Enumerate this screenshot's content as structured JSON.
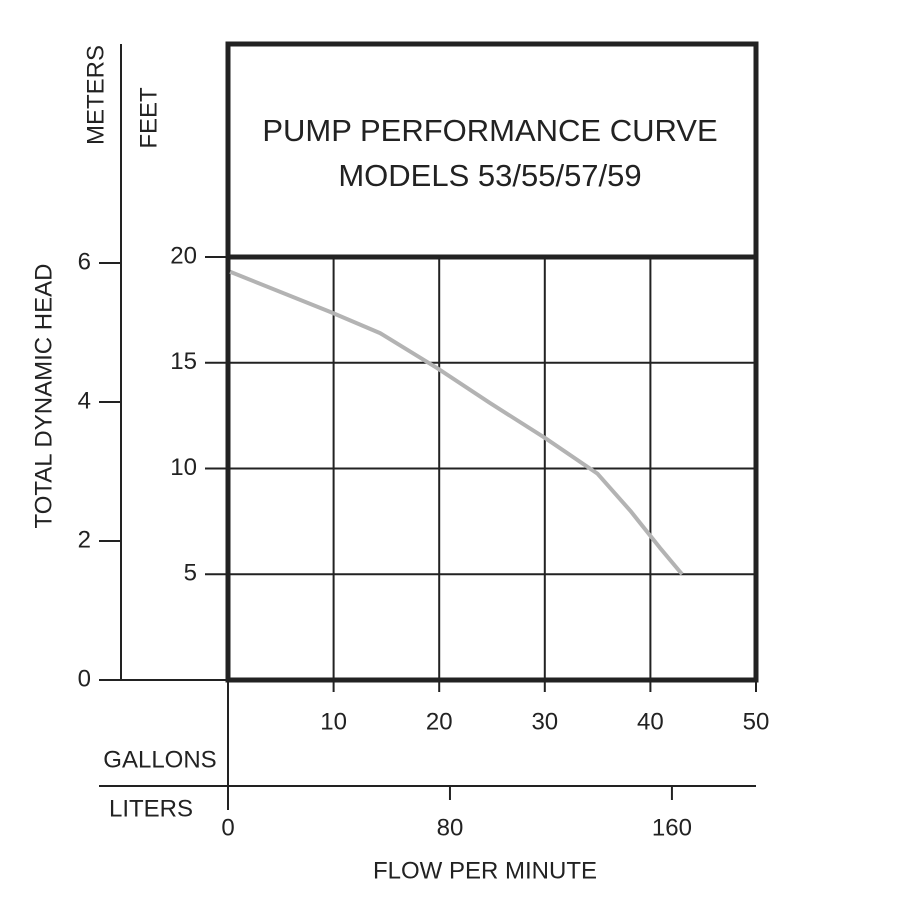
{
  "chart_data": {
    "type": "line",
    "title": "PUMP PERFORMANCE CURVE",
    "subtitle": "MODELS 53/55/57/59",
    "y_label": "FEET",
    "y2_label": "METERS",
    "y_axis_title": "TOTAL DYNAMIC HEAD",
    "x_label": "GALLONS",
    "x2_label": "LITERS",
    "x_axis_title": "FLOW PER MINUTE",
    "xlim": [
      0,
      50
    ],
    "xticks": [
      10,
      20,
      30,
      40,
      50
    ],
    "x2lim": [
      0,
      190.3
    ],
    "x2ticks": [
      0,
      80,
      160
    ],
    "ylim": [
      0,
      30.07
    ],
    "yticks": [
      5,
      10,
      15,
      20
    ],
    "y2lim": [
      0,
      9.15
    ],
    "y2ticks": [
      0,
      2,
      4,
      6
    ],
    "grid": true,
    "series": [
      {
        "name": "Models 53/55/57/59",
        "color": "#b3b3b3",
        "x": [
          0.2,
          9.7,
          14.4,
          19.8,
          24.8,
          30,
          35,
          38.1,
          40.9,
          43
        ],
        "values": [
          19.3,
          17.4,
          16.4,
          14.75,
          13.1,
          11.45,
          9.75,
          8.0,
          6.25,
          5.0
        ]
      }
    ]
  }
}
